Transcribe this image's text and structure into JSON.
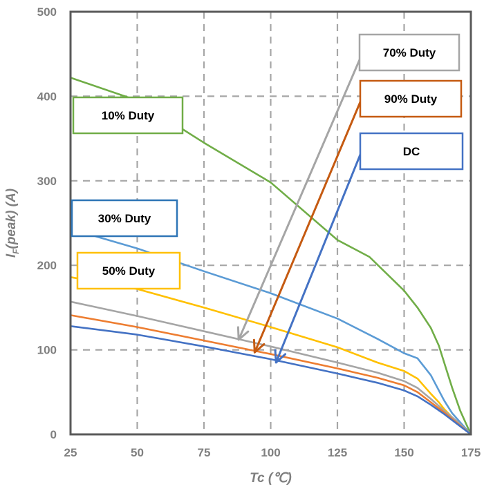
{
  "chart_data": {
    "type": "line",
    "xlabel": "Tc (℃)",
    "ylabel_main": "I",
    "ylabel_sub": "F",
    "ylabel_rest": "(peak) (A)",
    "xlim": [
      25,
      175
    ],
    "ylim": [
      0,
      500
    ],
    "xticks": [
      25,
      50,
      75,
      100,
      125,
      150,
      175
    ],
    "yticks": [
      0,
      100,
      200,
      300,
      400,
      500
    ],
    "grid": true,
    "series": [
      {
        "name": "10% Duty",
        "color": "#70ad47",
        "points": [
          [
            25,
            422
          ],
          [
            50,
            395
          ],
          [
            75,
            345
          ],
          [
            100,
            298
          ],
          [
            125,
            230
          ],
          [
            137,
            210
          ],
          [
            150,
            170
          ],
          [
            155,
            150
          ],
          [
            160,
            126
          ],
          [
            163,
            105
          ],
          [
            165,
            85
          ],
          [
            168,
            55
          ],
          [
            171,
            28
          ],
          [
            175,
            0
          ]
        ]
      },
      {
        "name": "30% Duty",
        "color": "#5b9bd5",
        "points": [
          [
            25,
            243
          ],
          [
            50,
            220
          ],
          [
            75,
            193
          ],
          [
            100,
            167
          ],
          [
            125,
            137
          ],
          [
            140,
            113
          ],
          [
            150,
            96
          ],
          [
            155,
            90
          ],
          [
            160,
            70
          ],
          [
            163,
            52
          ],
          [
            165,
            40
          ],
          [
            168,
            25
          ],
          [
            175,
            0
          ]
        ]
      },
      {
        "name": "50% Duty",
        "color": "#ffc000",
        "points": [
          [
            25,
            186
          ],
          [
            50,
            172
          ],
          [
            75,
            150
          ],
          [
            100,
            127
          ],
          [
            125,
            103
          ],
          [
            140,
            85
          ],
          [
            150,
            75
          ],
          [
            155,
            66
          ],
          [
            160,
            48
          ],
          [
            163,
            38
          ],
          [
            165,
            30
          ],
          [
            168,
            20
          ],
          [
            175,
            0
          ]
        ]
      },
      {
        "name": "70% Duty",
        "color": "#a5a5a5",
        "points": [
          [
            25,
            157
          ],
          [
            50,
            140
          ],
          [
            75,
            122
          ],
          [
            100,
            104
          ],
          [
            125,
            85
          ],
          [
            140,
            73
          ],
          [
            150,
            63
          ],
          [
            155,
            55
          ],
          [
            160,
            42
          ],
          [
            165,
            28
          ],
          [
            170,
            15
          ],
          [
            175,
            0
          ]
        ]
      },
      {
        "name": "90% Duty",
        "color": "#ed7d31",
        "points": [
          [
            25,
            141
          ],
          [
            50,
            127
          ],
          [
            75,
            111
          ],
          [
            100,
            95
          ],
          [
            125,
            78
          ],
          [
            140,
            67
          ],
          [
            150,
            58
          ],
          [
            155,
            50
          ],
          [
            160,
            38
          ],
          [
            165,
            26
          ],
          [
            170,
            13
          ],
          [
            175,
            0
          ]
        ]
      },
      {
        "name": "DC",
        "color": "#4472c4",
        "points": [
          [
            25,
            128
          ],
          [
            50,
            118
          ],
          [
            75,
            104
          ],
          [
            100,
            89
          ],
          [
            125,
            72
          ],
          [
            140,
            61
          ],
          [
            150,
            52
          ],
          [
            155,
            45
          ],
          [
            160,
            35
          ],
          [
            165,
            24
          ],
          [
            170,
            12
          ],
          [
            175,
            0
          ]
        ]
      }
    ],
    "callouts": [
      {
        "text": "10% Duty",
        "color": "#70ad47"
      },
      {
        "text": "30% Duty",
        "color": "#2e75b6"
      },
      {
        "text": "50% Duty",
        "color": "#ffc000"
      },
      {
        "text": "70% Duty",
        "color": "#a5a5a5"
      },
      {
        "text": "90% Duty",
        "color": "#c55a11"
      },
      {
        "text": "DC",
        "color": "#4472c4"
      }
    ],
    "arrows": [
      {
        "from_callout": "70% Duty",
        "to": [
          88,
          112
        ],
        "color": "#a5a5a5"
      },
      {
        "from_callout": "90% Duty",
        "to": [
          94,
          97
        ],
        "color": "#c55a11"
      },
      {
        "from_callout": "DC",
        "to": [
          102,
          85
        ],
        "color": "#4472c4"
      }
    ]
  }
}
